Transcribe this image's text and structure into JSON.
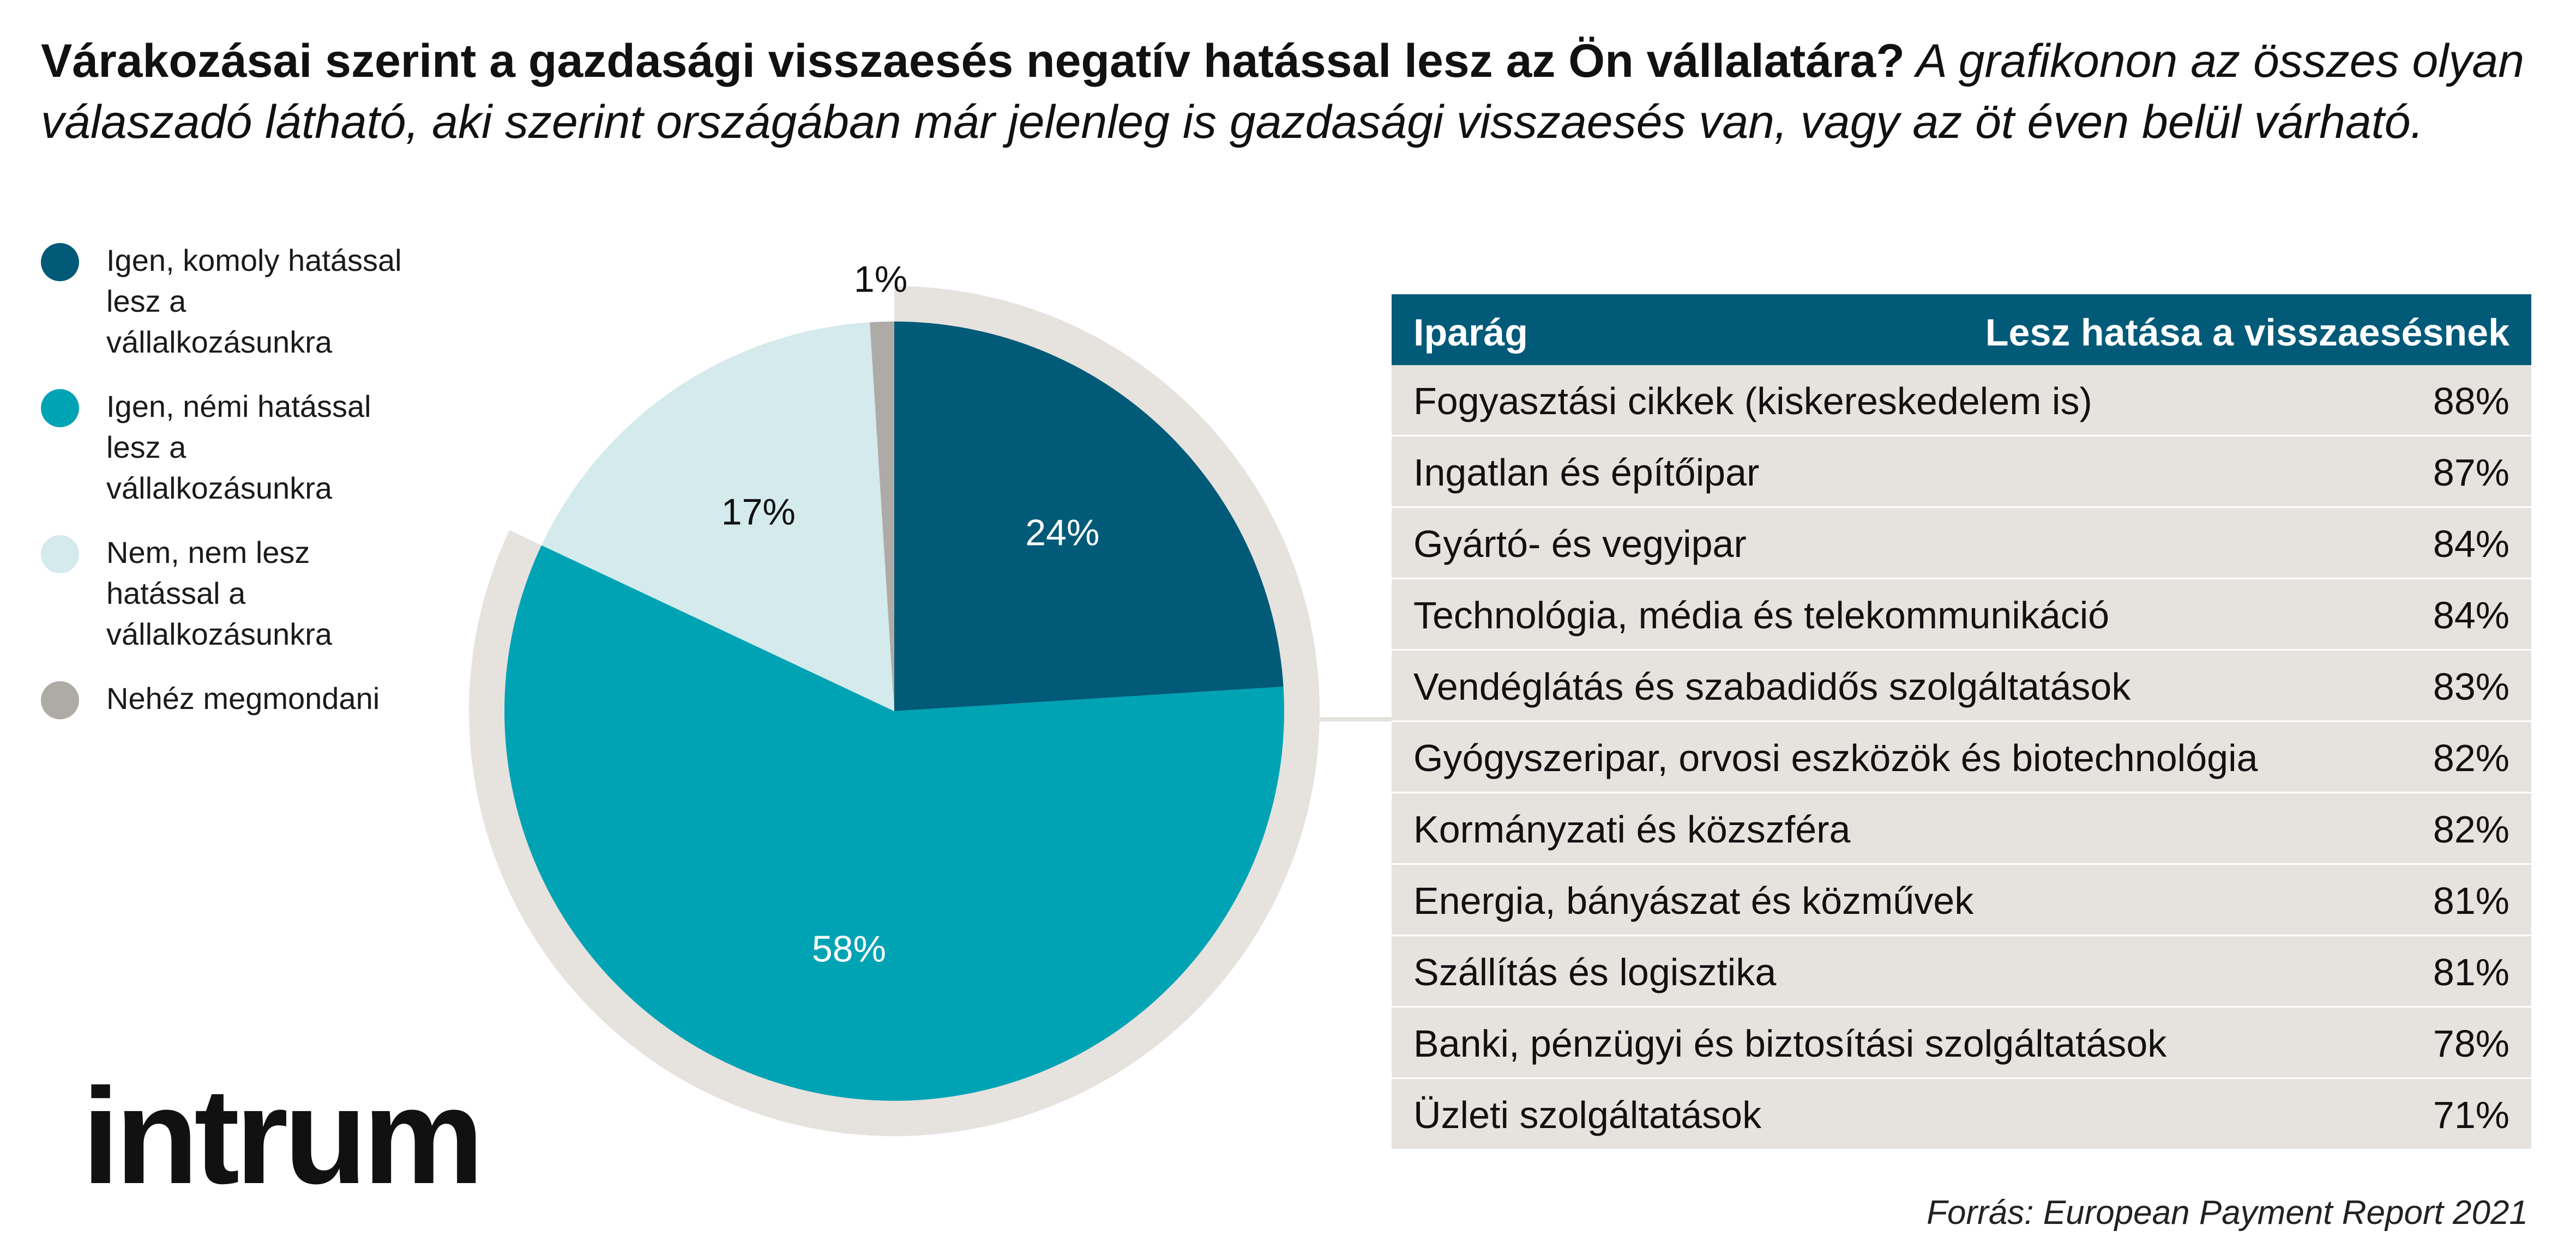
{
  "headline": {
    "bold": "Várakozásai szerint a gazdasági visszaesés negatív hatással lesz az Ön vállalatára?",
    "italic": " A grafikonon az összes olyan válaszadó látható, aki szerint országában már jelenleg is gazdasági visszaesés van, vagy az öt éven belül várható."
  },
  "legend": [
    {
      "label": "Igen, komoly hatással lesz a vállalkozásunkra",
      "color": "#005a78"
    },
    {
      "label": "Igen, némi hatással lesz a vállalkozásunkra",
      "color": "#00a3b4"
    },
    {
      "label": "Nem, nem lesz hatással a vállalkozásunkra",
      "color": "#d4eaec"
    },
    {
      "label": "Nehéz megmondani",
      "color": "#aeaaa6"
    }
  ],
  "chart_data": {
    "type": "pie",
    "slices": [
      {
        "label": "Igen, komoly hatással lesz a vállalkozásunkra",
        "value": 24,
        "display": "24%",
        "color": "#005a78"
      },
      {
        "label": "Igen, némi hatással lesz a vállalkozásunkra",
        "value": 58,
        "display": "58%",
        "color": "#00a3b4"
      },
      {
        "label": "Nem, nem lesz hatással a vállalkozásunkra",
        "value": 17,
        "display": "17%",
        "color": "#d4eaec"
      },
      {
        "label": "Nehéz megmondani",
        "value": 1,
        "display": "1%",
        "color": "#aeaaa6"
      }
    ],
    "highlight_ring_color": "#e6e2de",
    "legend_position": "left"
  },
  "table": {
    "header": {
      "industry": "Iparág",
      "impact": "Lesz hatása a visszaesésnek"
    },
    "rows": [
      {
        "industry": "Fogyasztási cikkek (kiskereskedelem is)",
        "value": "88%"
      },
      {
        "industry": "Ingatlan és építőipar",
        "value": "87%"
      },
      {
        "industry": "Gyártó- és vegyipar",
        "value": "84%"
      },
      {
        "industry": "Technológia, média és telekommunikáció",
        "value": "84%"
      },
      {
        "industry": "Vendéglátás és szabadidős szolgáltatások",
        "value": "83%"
      },
      {
        "industry": "Gyógyszeripar, orvosi eszközök és biotechnológia",
        "value": "82%"
      },
      {
        "industry": "Kormányzati és közszféra",
        "value": "82%"
      },
      {
        "industry": "Energia, bányászat és közművek",
        "value": "81%"
      },
      {
        "industry": "Szállítás és logisztika",
        "value": "81%"
      },
      {
        "industry": "Banki, pénzügyi és biztosítási szolgáltatások",
        "value": "78%"
      },
      {
        "industry": "Üzleti szolgáltatások",
        "value": "71%"
      }
    ],
    "header_color": "#005a78",
    "row_color": "#e6e2de"
  },
  "logo": {
    "text": "intrum"
  },
  "source": "Forrás: European Payment Report 2021"
}
